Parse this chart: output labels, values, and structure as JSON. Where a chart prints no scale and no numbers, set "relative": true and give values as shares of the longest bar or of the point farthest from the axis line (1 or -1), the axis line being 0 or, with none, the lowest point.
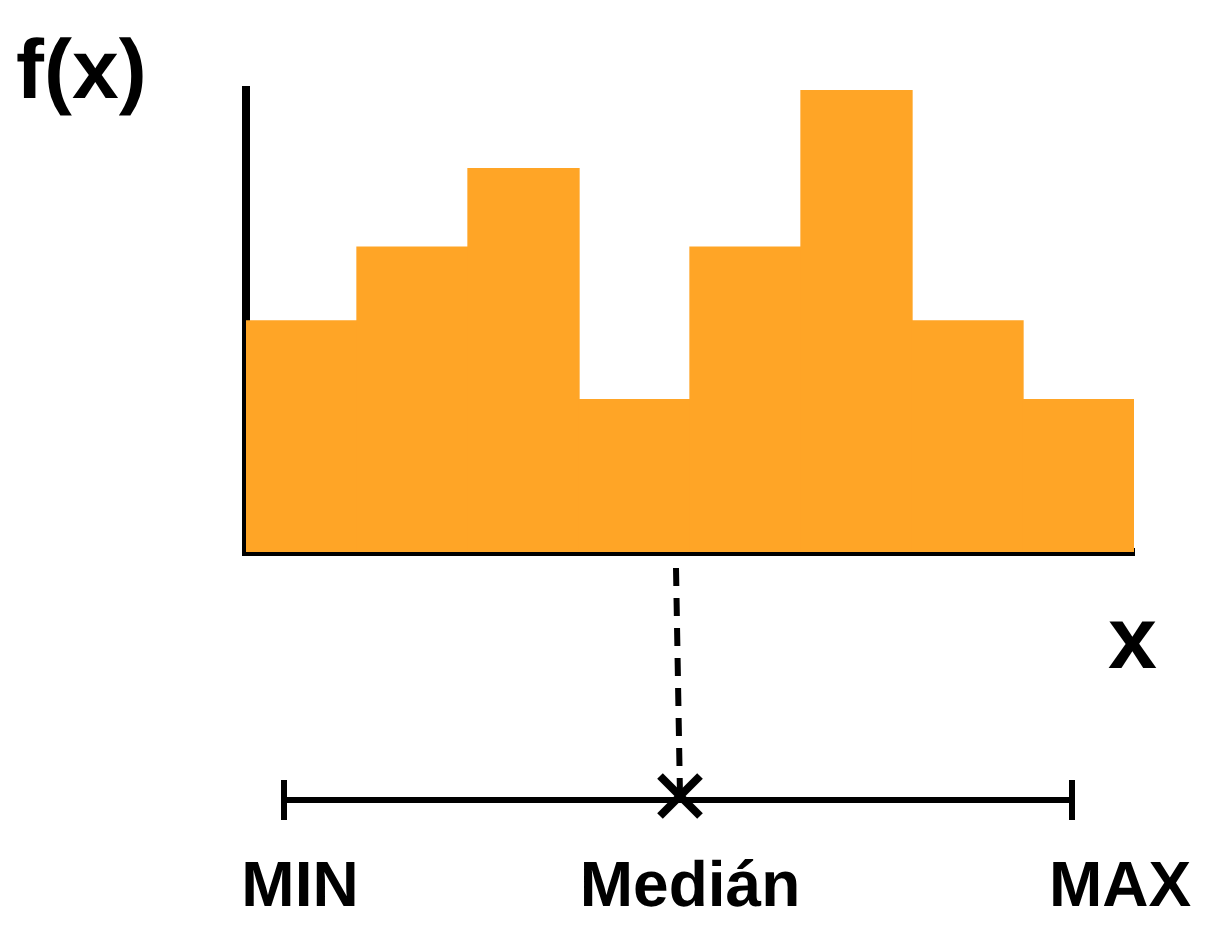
{
  "chart_data": {
    "type": "bar",
    "relative": true,
    "ylabel": "f(x)",
    "xlabel": "x",
    "categories": [
      null,
      null,
      null,
      null,
      null,
      null,
      null,
      null
    ],
    "values": [
      0.5,
      0.66,
      0.83,
      0.33,
      0.66,
      1,
      0.5,
      0.33
    ],
    "color": "#ffa526",
    "annotations": [
      "MIN",
      "Medián",
      "MAX"
    ]
  }
}
